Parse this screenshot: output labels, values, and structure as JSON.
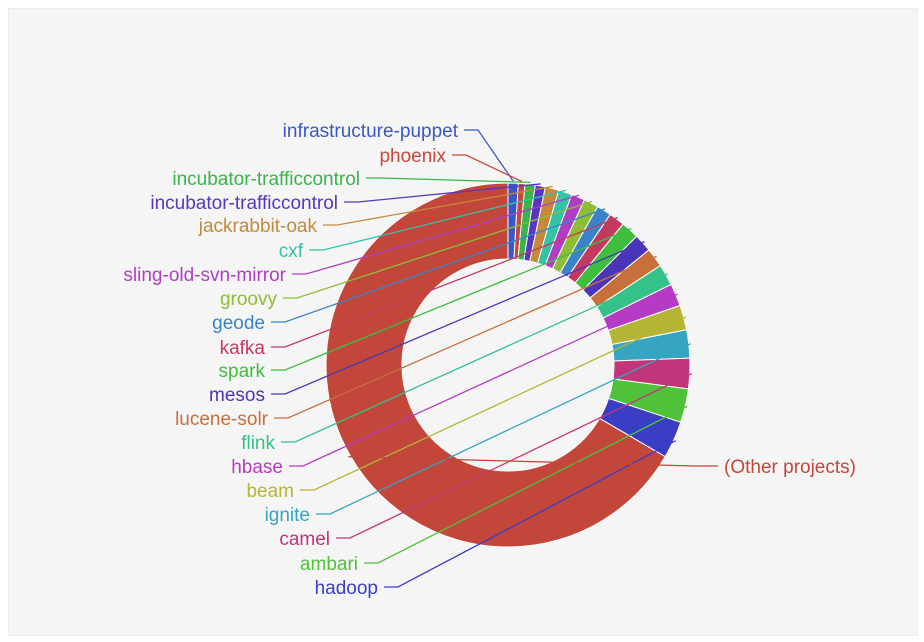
{
  "chart_data": {
    "type": "pie",
    "donut": true,
    "title": "",
    "slices": [
      {
        "label": "infrastructure-puppet",
        "value": 0.9,
        "color": "#3a57c7"
      },
      {
        "label": "phoenix",
        "value": 0.6,
        "color": "#c9483b"
      },
      {
        "label": "incubator-trafficcontrol",
        "value": 0.9,
        "color": "#37b54a"
      },
      {
        "label": "incubator-trafficcontrol",
        "value": 0.9,
        "color": "#5a35c2"
      },
      {
        "label": "jackrabbit-oak",
        "value": 1.2,
        "color": "#c48a3a"
      },
      {
        "label": "cxf",
        "value": 1.2,
        "color": "#35c2a6"
      },
      {
        "label": "sling-old-svn-mirror",
        "value": 1.2,
        "color": "#b03ec4"
      },
      {
        "label": "groovy",
        "value": 1.3,
        "color": "#8fbd35"
      },
      {
        "label": "geode",
        "value": 1.3,
        "color": "#3b83c9"
      },
      {
        "label": "kafka",
        "value": 1.4,
        "color": "#c43a5f"
      },
      {
        "label": "spark",
        "value": 1.6,
        "color": "#3fbd3f"
      },
      {
        "label": "mesos",
        "value": 1.6,
        "color": "#4a35b8"
      },
      {
        "label": "lucene-solr",
        "value": 1.7,
        "color": "#c7703a"
      },
      {
        "label": "flink",
        "value": 1.9,
        "color": "#35c28a"
      },
      {
        "label": "hbase",
        "value": 2.0,
        "color": "#b53ac4"
      },
      {
        "label": "beam",
        "value": 2.2,
        "color": "#b5b535"
      },
      {
        "label": "ignite",
        "value": 2.5,
        "color": "#35a5c2"
      },
      {
        "label": "camel",
        "value": 2.7,
        "color": "#c2357a"
      },
      {
        "label": "ambari",
        "value": 3.0,
        "color": "#4fc23a"
      },
      {
        "label": "hadoop",
        "value": 3.3,
        "color": "#3a3ec4"
      },
      {
        "label": "(Other projects)",
        "value": 66.6,
        "color": "#c2473a"
      }
    ]
  }
}
